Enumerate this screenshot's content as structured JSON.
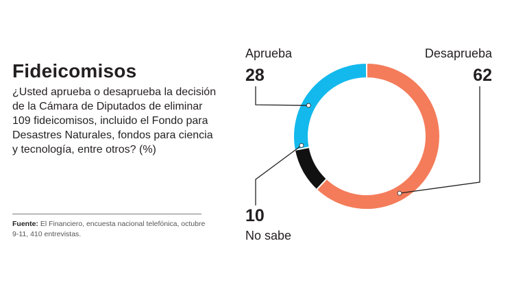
{
  "title": "Fideicomisos",
  "question": "¿Usted aprueba o desaprueba la decisión de la Cámara de Diputados de eliminar 109 fideicomisos, incluido el Fondo para Desastres Naturales, fondos para ciencia y tecnología, entre otros? (%)",
  "source": {
    "label": "Fuente:",
    "text": "El Financiero, encuesta nacional telefónica, octubre 9-11, 410 entrevistas."
  },
  "chart_data": {
    "type": "pie",
    "donut": true,
    "slices": [
      {
        "label": "Desaprueba",
        "value": 62,
        "value_label": "62",
        "color": "#f47c5a"
      },
      {
        "label": "No sabe",
        "value": 10,
        "value_label": "10",
        "color": "#111111"
      },
      {
        "label": "Aprueba",
        "value": 28,
        "value_label": "28",
        "color": "#13b9ec"
      }
    ]
  }
}
